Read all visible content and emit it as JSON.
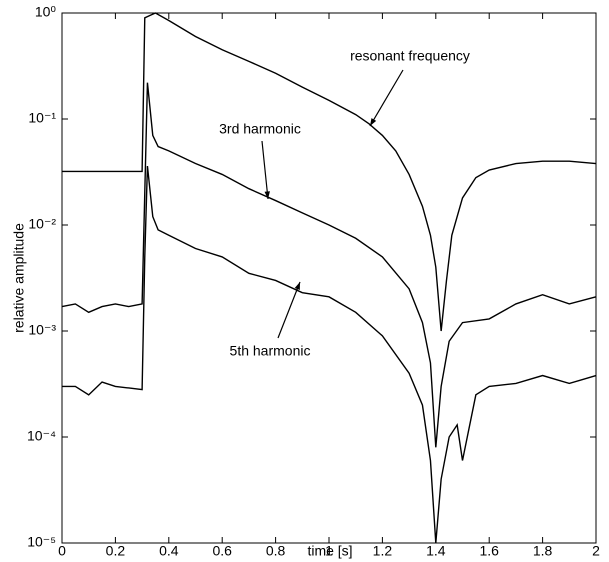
{
  "chart_data": {
    "type": "line",
    "xlabel": "time [s]",
    "ylabel": "relative amplitude",
    "xlim": [
      0,
      2
    ],
    "xticks": [
      0,
      0.2,
      0.4,
      0.6,
      0.8,
      1,
      1.2,
      1.4,
      1.6,
      1.8,
      2
    ],
    "ylim": [
      1e-05,
      1
    ],
    "log_y": true,
    "yticks": [
      {
        "value": 1e-05,
        "label": "10⁻⁵"
      },
      {
        "value": 0.0001,
        "label": "10⁻⁴"
      },
      {
        "value": 0.001,
        "label": "10⁻³"
      },
      {
        "value": 0.01,
        "label": "10⁻²"
      },
      {
        "value": 0.1,
        "label": "10⁻¹"
      },
      {
        "value": 1,
        "label": "10⁰"
      }
    ],
    "grid": false,
    "series": [
      {
        "name": "resonant frequency",
        "color": "#000000",
        "x": [
          0,
          0.3,
          0.31,
          0.33,
          0.35,
          0.4,
          0.5,
          0.6,
          0.7,
          0.8,
          0.9,
          1.0,
          1.1,
          1.15,
          1.2,
          1.25,
          1.3,
          1.35,
          1.38,
          1.4,
          1.42,
          1.44,
          1.46,
          1.5,
          1.55,
          1.6,
          1.7,
          1.8,
          1.9,
          2.0
        ],
        "values": [
          0.032,
          0.032,
          0.9,
          0.95,
          1.0,
          0.85,
          0.6,
          0.45,
          0.35,
          0.27,
          0.2,
          0.15,
          0.11,
          0.09,
          0.07,
          0.05,
          0.03,
          0.015,
          0.008,
          0.004,
          0.001,
          0.003,
          0.008,
          0.018,
          0.028,
          0.033,
          0.038,
          0.04,
          0.04,
          0.038
        ]
      },
      {
        "name": "3rd harmonic",
        "color": "#000000",
        "x": [
          0,
          0.05,
          0.1,
          0.15,
          0.2,
          0.25,
          0.3,
          0.31,
          0.32,
          0.34,
          0.36,
          0.4,
          0.5,
          0.6,
          0.7,
          0.8,
          0.9,
          1.0,
          1.1,
          1.2,
          1.3,
          1.35,
          1.38,
          1.4,
          1.42,
          1.45,
          1.5,
          1.6,
          1.7,
          1.8,
          1.9,
          2.0
        ],
        "values": [
          0.0017,
          0.0018,
          0.0015,
          0.0017,
          0.0018,
          0.0017,
          0.0018,
          0.02,
          0.22,
          0.07,
          0.055,
          0.05,
          0.038,
          0.03,
          0.022,
          0.017,
          0.013,
          0.01,
          0.0075,
          0.005,
          0.0025,
          0.0012,
          0.0005,
          8e-05,
          0.0003,
          0.0008,
          0.0012,
          0.0013,
          0.0018,
          0.0022,
          0.0018,
          0.0021
        ]
      },
      {
        "name": "5th harmonic",
        "color": "#000000",
        "x": [
          0,
          0.05,
          0.1,
          0.15,
          0.2,
          0.25,
          0.3,
          0.31,
          0.32,
          0.34,
          0.36,
          0.4,
          0.5,
          0.6,
          0.7,
          0.8,
          0.9,
          1.0,
          1.1,
          1.2,
          1.3,
          1.35,
          1.38,
          1.4,
          1.42,
          1.45,
          1.48,
          1.5,
          1.55,
          1.6,
          1.7,
          1.8,
          1.9,
          2.0
        ],
        "values": [
          0.0003,
          0.0003,
          0.00025,
          0.00033,
          0.0003,
          0.00029,
          0.00028,
          0.005,
          0.036,
          0.012,
          0.009,
          0.008,
          0.006,
          0.005,
          0.0035,
          0.003,
          0.0023,
          0.0021,
          0.0015,
          0.0009,
          0.0004,
          0.0002,
          6e-05,
          1e-05,
          4e-05,
          0.0001,
          0.00013,
          6e-05,
          0.00025,
          0.0003,
          0.00032,
          0.00038,
          0.00032,
          0.00038
        ]
      }
    ]
  }
}
